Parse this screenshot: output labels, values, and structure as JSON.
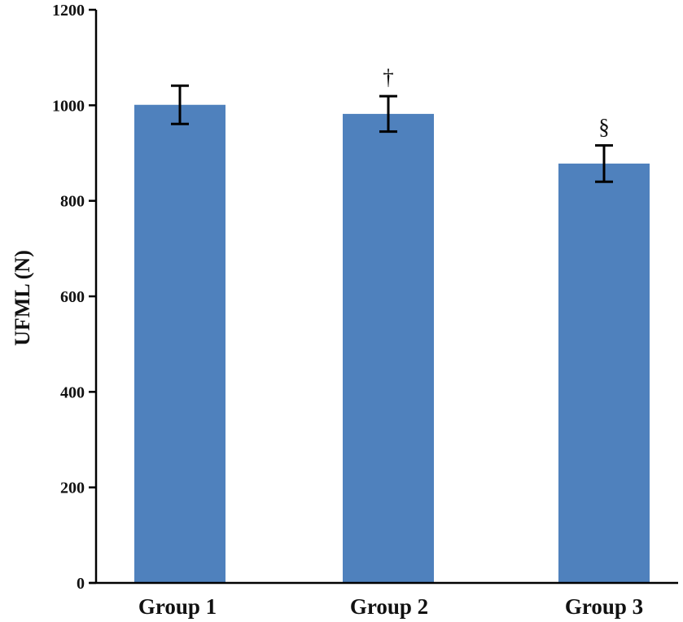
{
  "chart_data": {
    "type": "bar",
    "categories": [
      "Group 1",
      "Group 2",
      "Group 3"
    ],
    "series": [
      {
        "values": [
          1001,
          982,
          878
        ],
        "error": [
          40,
          37,
          38
        ],
        "color": "#4f81bd"
      }
    ],
    "annotations": [
      "",
      "†",
      "§"
    ],
    "xlabel": "",
    "ylabel": "UFML (N)",
    "ylim": [
      0,
      1200
    ],
    "yticks": [
      0,
      200,
      400,
      600,
      800,
      1000,
      1200
    ],
    "grid": false
  }
}
